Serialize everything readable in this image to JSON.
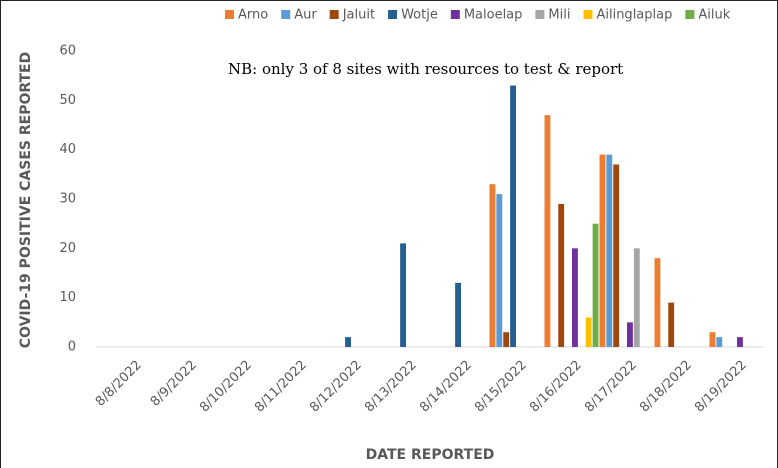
{
  "chart_data": {
    "type": "bar",
    "annotation": "NB: only 3 of 8 sites with resources to test & report",
    "x_label": "DATE REPORTED",
    "y_label": "COVID-19  POSITIVE CASES REPORTED",
    "categories": [
      "8/8/2022",
      "8/9/2022",
      "8/10/2022",
      "8/11/2022",
      "8/12/2022",
      "8/13/2022",
      "8/14/2022",
      "8/15/2022",
      "8/16/2022",
      "8/17/2022",
      "8/18/2022",
      "8/19/2022"
    ],
    "series": [
      {
        "name": "Arno",
        "color": "#ed7d31",
        "values": [
          0,
          0,
          0,
          0,
          0,
          0,
          0,
          33,
          47,
          39,
          18,
          3
        ]
      },
      {
        "name": "Aur",
        "color": "#5b9bd5",
        "values": [
          0,
          0,
          0,
          0,
          0,
          0,
          0,
          31,
          0,
          39,
          0,
          2
        ]
      },
      {
        "name": "Jaluit",
        "color": "#9e480e",
        "values": [
          0,
          0,
          0,
          0,
          0,
          0,
          0,
          3,
          29,
          37,
          9,
          0
        ]
      },
      {
        "name": "Wotje",
        "color": "#255e91",
        "values": [
          0,
          0,
          0,
          0,
          2,
          21,
          13,
          53,
          0,
          0,
          0,
          0
        ]
      },
      {
        "name": "Maloelap",
        "color": "#7030a0",
        "values": [
          0,
          0,
          0,
          0,
          0,
          0,
          0,
          0,
          20,
          5,
          0,
          2
        ]
      },
      {
        "name": "Mili",
        "color": "#a5a5a5",
        "values": [
          0,
          0,
          0,
          0,
          0,
          0,
          0,
          0,
          0,
          20,
          0,
          0
        ]
      },
      {
        "name": "Ailinglaplap",
        "color": "#ffc000",
        "values": [
          0,
          0,
          0,
          0,
          0,
          0,
          0,
          0,
          6,
          0,
          0,
          0
        ]
      },
      {
        "name": "Ailuk",
        "color": "#70ad47",
        "values": [
          0,
          0,
          0,
          0,
          0,
          0,
          0,
          0,
          25,
          0,
          0,
          0
        ]
      }
    ],
    "ylim": [
      0,
      60
    ],
    "yticks": [
      0,
      10,
      20,
      30,
      40,
      50,
      60
    ],
    "grid": false,
    "legend": "top"
  }
}
